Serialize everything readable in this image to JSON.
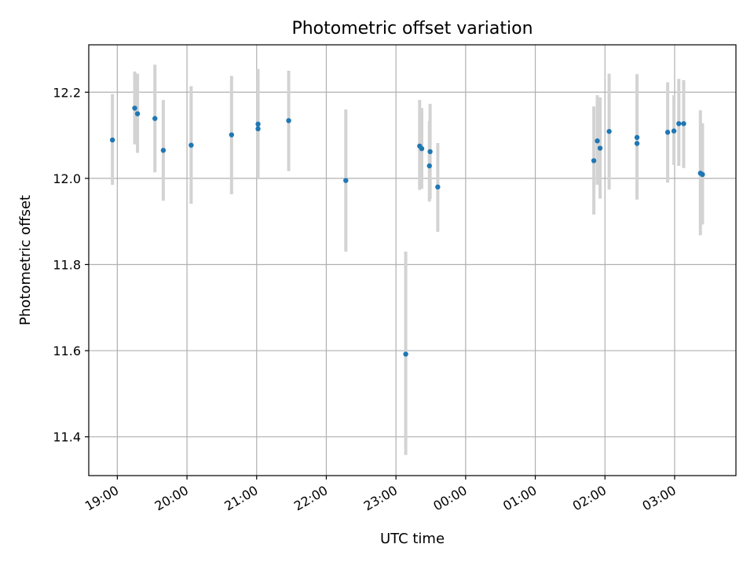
{
  "chart_data": {
    "type": "scatter",
    "title": "Photometric offset variation",
    "xlabel": "UTC time",
    "ylabel": "Photometric offset",
    "xlim_hours": [
      18.59,
      27.88
    ],
    "ylim": [
      11.31,
      12.31
    ],
    "yticks": [
      11.4,
      11.6,
      11.8,
      12.0,
      12.2
    ],
    "ytick_labels": [
      "11.4",
      "11.6",
      "11.8",
      "12.0",
      "12.2"
    ],
    "xticks_hours": [
      19,
      20,
      21,
      22,
      23,
      24,
      25,
      26,
      27
    ],
    "xtick_labels": [
      "19:00",
      "20:00",
      "21:00",
      "22:00",
      "23:00",
      "00:00",
      "01:00",
      "02:00",
      "03:00"
    ],
    "grid": true,
    "errorbar_color": "#d3d3d3",
    "marker_color": "#1f77b4",
    "points": [
      {
        "t": 18.93,
        "y": 12.089,
        "lo": 11.985,
        "hi": 12.196
      },
      {
        "t": 19.25,
        "y": 12.163,
        "lo": 12.079,
        "hi": 12.248
      },
      {
        "t": 19.29,
        "y": 12.15,
        "lo": 12.059,
        "hi": 12.243
      },
      {
        "t": 19.54,
        "y": 12.139,
        "lo": 12.014,
        "hi": 12.264
      },
      {
        "t": 19.66,
        "y": 12.065,
        "lo": 11.948,
        "hi": 12.182
      },
      {
        "t": 20.06,
        "y": 12.077,
        "lo": 11.941,
        "hi": 12.214
      },
      {
        "t": 20.64,
        "y": 12.101,
        "lo": 11.963,
        "hi": 12.238
      },
      {
        "t": 21.02,
        "y": 12.126,
        "lo": 12.032,
        "hi": 12.254
      },
      {
        "t": 21.02,
        "y": 12.115,
        "lo": 12.0,
        "hi": 12.23
      },
      {
        "t": 21.46,
        "y": 12.134,
        "lo": 12.017,
        "hi": 12.25
      },
      {
        "t": 22.28,
        "y": 11.995,
        "lo": 11.83,
        "hi": 12.16
      },
      {
        "t": 23.14,
        "y": 11.592,
        "lo": 11.358,
        "hi": 11.83
      },
      {
        "t": 23.34,
        "y": 12.075,
        "lo": 11.973,
        "hi": 12.182
      },
      {
        "t": 23.37,
        "y": 12.069,
        "lo": 11.976,
        "hi": 12.163
      },
      {
        "t": 23.48,
        "y": 12.029,
        "lo": 11.946,
        "hi": 12.133
      },
      {
        "t": 23.49,
        "y": 12.062,
        "lo": 11.952,
        "hi": 12.173
      },
      {
        "t": 23.6,
        "y": 11.98,
        "lo": 11.876,
        "hi": 12.082
      },
      {
        "t": 25.84,
        "y": 12.041,
        "lo": 11.916,
        "hi": 12.167
      },
      {
        "t": 25.89,
        "y": 12.087,
        "lo": 11.985,
        "hi": 12.193
      },
      {
        "t": 25.93,
        "y": 12.07,
        "lo": 11.953,
        "hi": 12.188
      },
      {
        "t": 26.06,
        "y": 12.109,
        "lo": 11.974,
        "hi": 12.243
      },
      {
        "t": 26.46,
        "y": 12.095,
        "lo": 11.951,
        "hi": 12.242
      },
      {
        "t": 26.46,
        "y": 12.081,
        "lo": 11.951,
        "hi": 12.21
      },
      {
        "t": 26.9,
        "y": 12.107,
        "lo": 11.99,
        "hi": 12.223
      },
      {
        "t": 26.99,
        "y": 12.11,
        "lo": 12.031,
        "hi": 12.193
      },
      {
        "t": 27.06,
        "y": 12.127,
        "lo": 12.029,
        "hi": 12.231
      },
      {
        "t": 27.13,
        "y": 12.127,
        "lo": 12.024,
        "hi": 12.228
      },
      {
        "t": 27.37,
        "y": 12.012,
        "lo": 11.868,
        "hi": 12.158
      },
      {
        "t": 27.4,
        "y": 12.009,
        "lo": 11.893,
        "hi": 12.128
      }
    ]
  }
}
